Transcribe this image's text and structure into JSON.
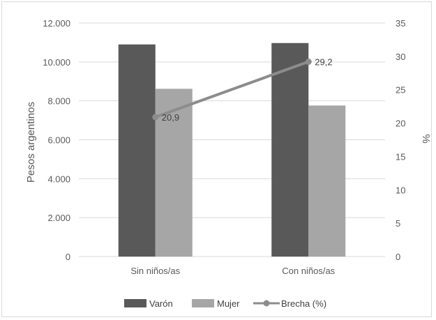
{
  "chart_data": {
    "type": "bar",
    "categories": [
      "Sin niños/as",
      "Con niños/as"
    ],
    "series": [
      {
        "name": "Varón",
        "kind": "bar",
        "axis": "left",
        "color": "#595959",
        "values": [
          10900,
          10970
        ]
      },
      {
        "name": "Mujer",
        "kind": "bar",
        "axis": "left",
        "color": "#a6a6a6",
        "values": [
          8620,
          7760
        ]
      },
      {
        "name": "Brecha (%)",
        "kind": "line",
        "axis": "right",
        "color": "#8c8c8c",
        "values": [
          20.9,
          29.2
        ],
        "labels": [
          "20,9",
          "29,2"
        ]
      }
    ],
    "ylabel": "Pesos argentinos",
    "y2label": "%",
    "ylim": [
      0,
      12000
    ],
    "y2lim": [
      0,
      35
    ],
    "yticks": [
      "0",
      "2.000",
      "4.000",
      "6.000",
      "8.000",
      "10.000",
      "12.000"
    ],
    "y2ticks": [
      "0",
      "5",
      "10",
      "15",
      "20",
      "25",
      "30",
      "35"
    ],
    "grid": true,
    "legend_position": "bottom"
  }
}
